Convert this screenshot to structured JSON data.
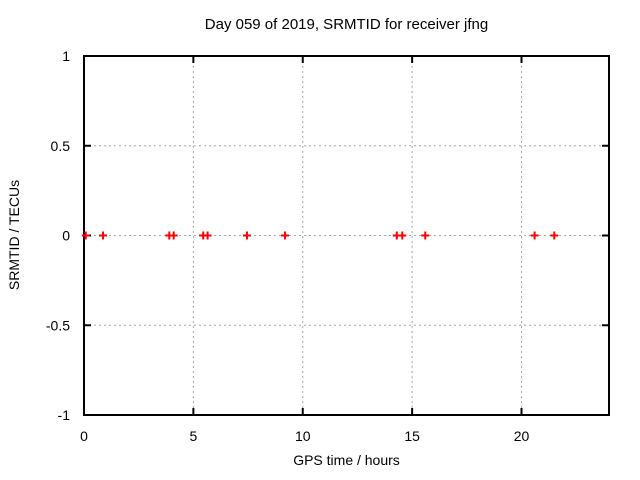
{
  "chart_data": {
    "type": "scatter",
    "title": "Day 059 of 2019, SRMTID for receiver jfng",
    "xlabel": "GPS time / hours",
    "ylabel": "SRMTID / TECUs",
    "xlim": [
      0,
      24
    ],
    "ylim": [
      -1,
      1
    ],
    "xticks": [
      0,
      5,
      10,
      15,
      20
    ],
    "xtick_labels": [
      "0",
      "5",
      "10",
      "15",
      "20"
    ],
    "yticks": [
      -1,
      -0.5,
      0,
      0.5,
      1
    ],
    "ytick_labels": [
      "-1",
      "-0.5",
      "0",
      "0.5",
      "1"
    ],
    "grid": true,
    "legend": "none",
    "marker": "plus",
    "marker_color": "#ff0000",
    "grid_color": "#a6a6a6",
    "axis_color": "#000000",
    "series": [
      {
        "name": "SRMTID",
        "x": [
          0.08,
          0.87,
          3.9,
          4.1,
          5.45,
          5.65,
          7.45,
          9.19,
          14.3,
          14.55,
          15.6,
          20.6,
          21.5
        ],
        "y": [
          0,
          0,
          0,
          0,
          0,
          0,
          0,
          0,
          0,
          0,
          0,
          0,
          0
        ]
      }
    ]
  }
}
